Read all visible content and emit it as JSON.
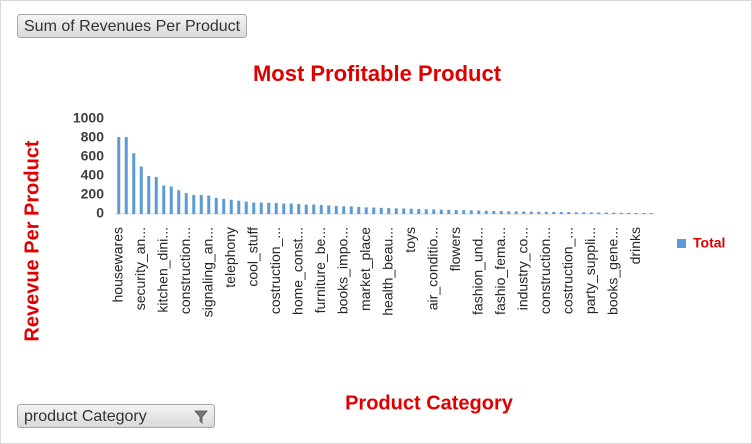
{
  "chart_data": {
    "type": "bar",
    "button_top": "Sum of Revenues Per Product",
    "button_bottom": "product Category",
    "title": "Most Profitable Product",
    "y_label": "Revevue Per Product",
    "x_label": "Product Category",
    "ylim": [
      0,
      1000
    ],
    "yticks": [
      0,
      200,
      400,
      600,
      800,
      1000
    ],
    "legend_position": "right",
    "series": [
      {
        "name": "Total",
        "color": "#5b9bd5",
        "values": [
          810,
          810,
          640,
          500,
          400,
          390,
          300,
          290,
          250,
          220,
          200,
          200,
          195,
          170,
          160,
          150,
          140,
          130,
          120,
          120,
          118,
          115,
          110,
          110,
          105,
          100,
          100,
          95,
          90,
          85,
          80,
          80,
          75,
          70,
          68,
          65,
          62,
          60,
          58,
          55,
          52,
          50,
          48,
          46,
          44,
          42,
          40,
          38,
          36,
          34,
          32,
          30,
          28,
          27,
          26,
          25,
          24,
          23,
          22,
          21,
          20,
          19,
          18,
          17,
          16,
          15,
          14,
          13,
          12,
          11,
          10,
          9
        ]
      }
    ],
    "categories": [
      "housewares",
      null,
      null,
      "security_an...",
      null,
      null,
      "kitchen_dini...",
      null,
      null,
      "construction...",
      null,
      null,
      "signaling_an...",
      null,
      null,
      "telephony",
      null,
      null,
      "cool_stuff",
      null,
      null,
      "costruction_...",
      null,
      null,
      "home_const...",
      null,
      null,
      "furniture_be...",
      null,
      null,
      "books_impo...",
      null,
      null,
      "market_place",
      null,
      null,
      "health_beau...",
      null,
      null,
      "toys",
      null,
      null,
      "air_conditio...",
      null,
      null,
      "flowers",
      null,
      null,
      "fashion_und...",
      null,
      null,
      "fashio_fema...",
      null,
      null,
      "industry_co...",
      null,
      null,
      "construction...",
      null,
      null,
      "costruction_...",
      null,
      null,
      "party_suppli...",
      null,
      null,
      "books_gene...",
      null,
      null,
      "drinks",
      null,
      null
    ]
  }
}
